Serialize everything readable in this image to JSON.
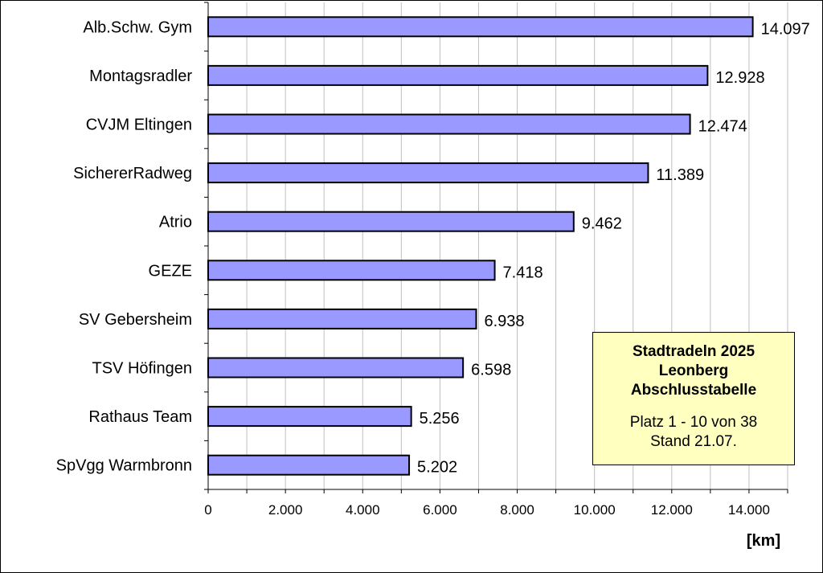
{
  "chart_data": {
    "type": "bar",
    "orientation": "horizontal",
    "categories": [
      "Alb.Schw. Gym",
      "Montagsradler",
      "CVJM Eltingen",
      "SichererRadweg",
      "Atrio",
      "GEZE",
      "SV Gebersheim",
      "TSV Höfingen",
      "Rathaus Team",
      "SpVgg Warmbronn"
    ],
    "values": [
      14097,
      12928,
      12474,
      11389,
      9462,
      7418,
      6938,
      6598,
      5256,
      5202
    ],
    "value_labels": [
      "14.097",
      "12.928",
      "12.474",
      "11.389",
      "9.462",
      "7.418",
      "6.938",
      "6.598",
      "5.256",
      "5.202"
    ],
    "xlim": [
      0,
      15000
    ],
    "x_ticks": [
      0,
      2000,
      4000,
      6000,
      8000,
      10000,
      12000,
      14000
    ],
    "x_tick_labels": [
      "0",
      "2.000",
      "4.000",
      "6.000",
      "8.000",
      "10.000",
      "12.000",
      "14.000"
    ],
    "xlabel": "[km]",
    "grid": "vertical",
    "bar_color": "#9999ff",
    "grid_color": "#c0c0c0"
  },
  "info_box": {
    "title_lines": [
      "Stadtradeln 2025",
      "Leonberg",
      "Abschlusstabelle"
    ],
    "detail_lines": [
      "Platz 1 - 10 von 38",
      "Stand 21.07."
    ],
    "background": "#ffffc0"
  }
}
